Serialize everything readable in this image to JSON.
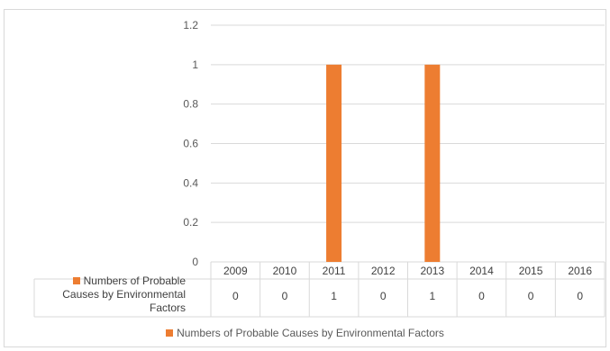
{
  "colors": {
    "series": "#ED7D31",
    "grid": "#d9d9d9",
    "text": "#595959"
  },
  "chart_data": {
    "type": "bar",
    "categories": [
      "2009",
      "2010",
      "2011",
      "2012",
      "2013",
      "2014",
      "2015",
      "2016"
    ],
    "series": [
      {
        "name": "Numbers of Probable Causes by Environmental Factors",
        "values": [
          0,
          0,
          1,
          0,
          1,
          0,
          0,
          0
        ]
      }
    ],
    "y_ticks": [
      "0",
      "0.2",
      "0.4",
      "0.6",
      "0.8",
      "1",
      "1.2"
    ],
    "ylim": [
      0,
      1.2
    ],
    "grid": true,
    "legend_position": "bottom",
    "data_table": true
  }
}
